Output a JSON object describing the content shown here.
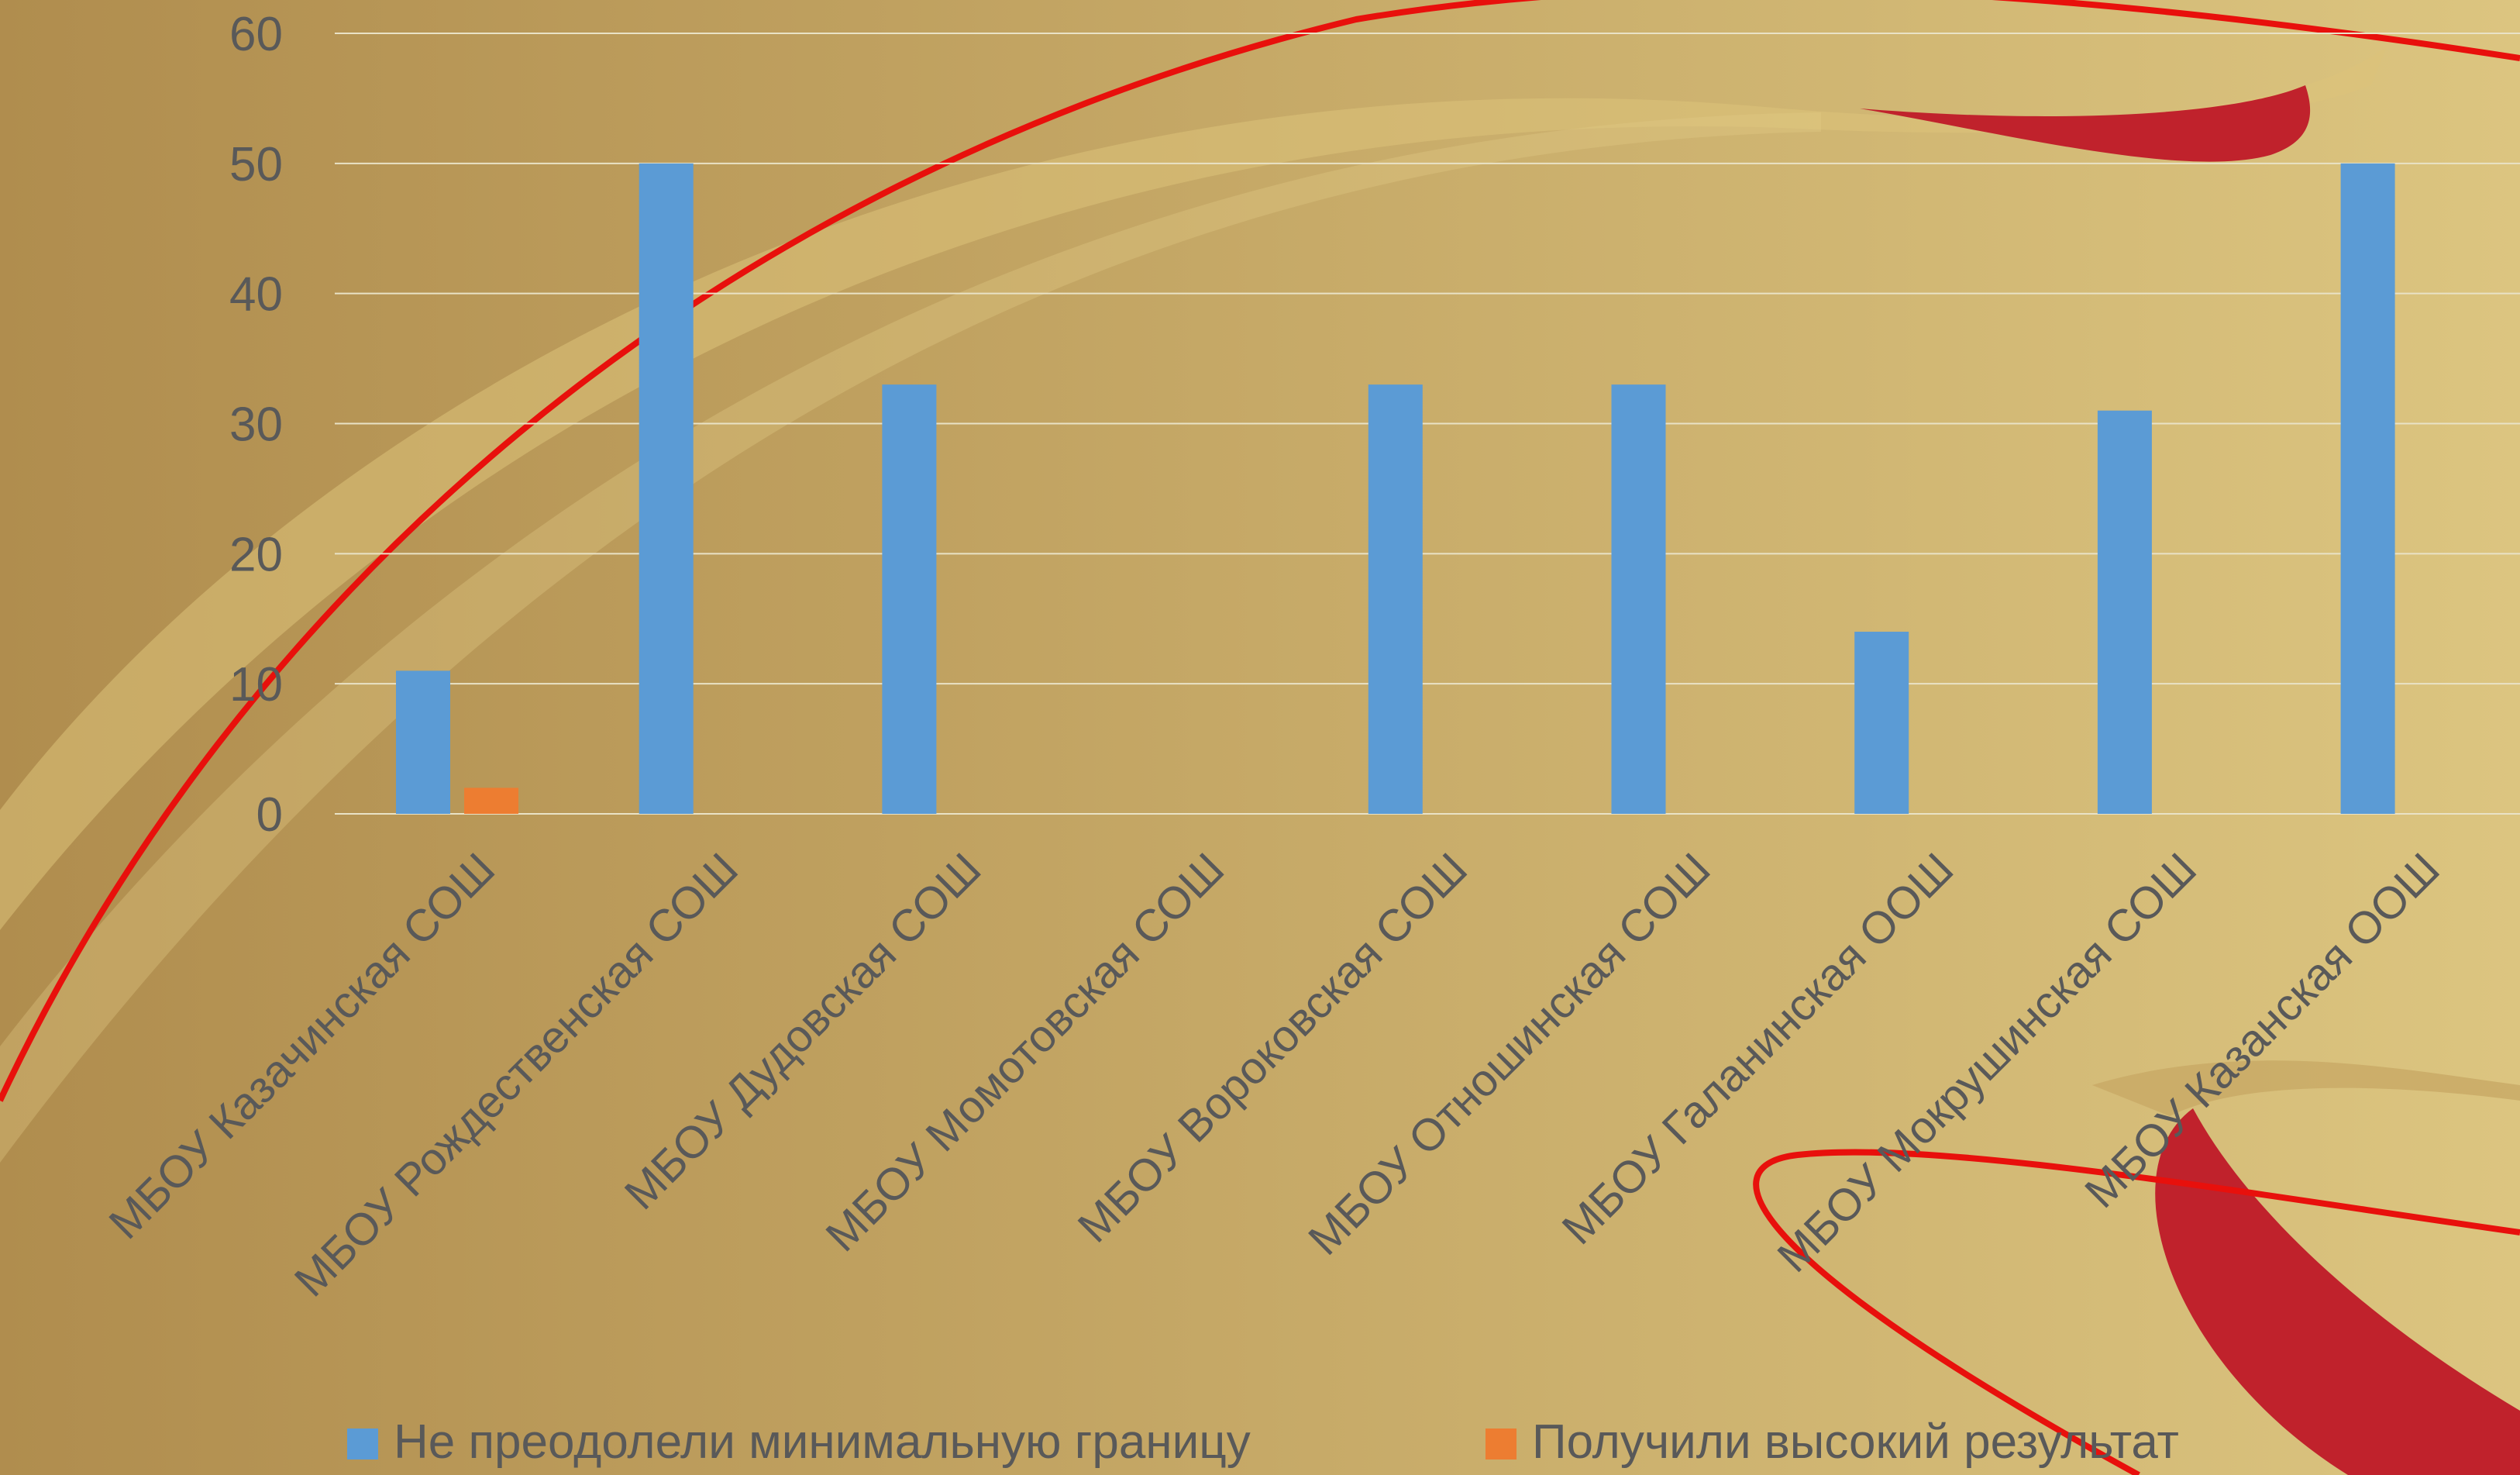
{
  "colors": {
    "background_start": "#b08d4e",
    "background_end": "#dcc580",
    "series_1": "#5b9bd5",
    "series_2": "#ed7d31",
    "gridline": "#e9e2c6",
    "text": "#595959",
    "ribbon_red": "#c0222c",
    "thread_red": "#e8100c"
  },
  "chart_data": {
    "type": "bar",
    "title": "",
    "xlabel": "",
    "ylabel": "",
    "ylim": [
      0,
      60
    ],
    "yticks": [
      0,
      10,
      20,
      30,
      40,
      50,
      60
    ],
    "grid": true,
    "legend_position": "bottom",
    "categories": [
      "МБОУ Казачинская СОШ",
      "МБОУ Рождественская СОШ",
      "МБОУ Дудовская СОШ",
      "МБОУ Момотовская СОШ",
      "МБОУ Вороковская СОШ",
      "МБОУ Отношинская СОШ",
      "МБОУ Галанинская ООШ",
      "МБОУ Мокрушинская СОШ",
      "МБОУ Казанская ООШ"
    ],
    "series": [
      {
        "name": "Не преодолели минимальную границу",
        "color": "#5b9bd5",
        "values": [
          11,
          50,
          33,
          0,
          33,
          33,
          14,
          31,
          50
        ]
      },
      {
        "name": "Получили высокий результат",
        "color": "#ed7d31",
        "values": [
          2,
          0,
          0,
          0,
          0,
          0,
          0,
          0,
          0
        ]
      }
    ]
  }
}
